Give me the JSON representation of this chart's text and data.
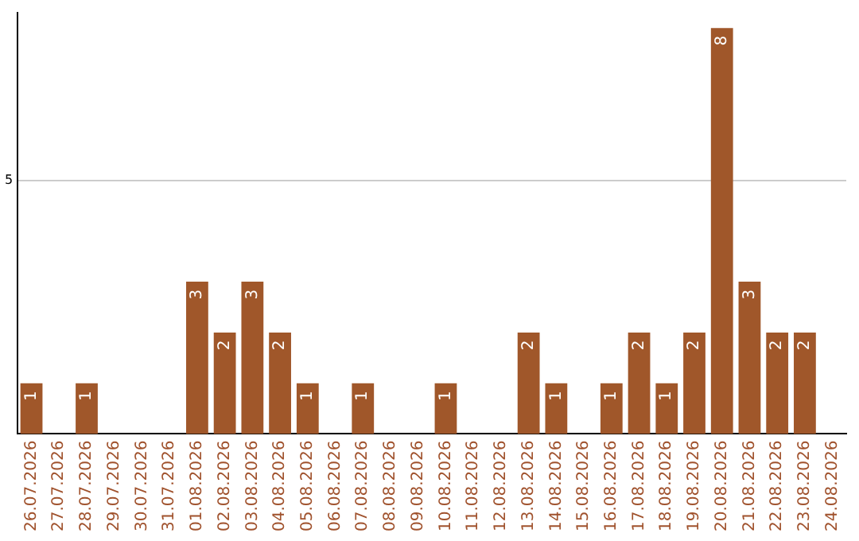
{
  "chart_data": {
    "type": "bar",
    "categories": [
      "26.07.2026",
      "27.07.2026",
      "28.07.2026",
      "29.07.2026",
      "30.07.2026",
      "31.07.2026",
      "01.08.2026",
      "02.08.2026",
      "03.08.2026",
      "04.08.2026",
      "05.08.2026",
      "06.08.2026",
      "07.08.2026",
      "08.08.2026",
      "09.08.2026",
      "10.08.2026",
      "11.08.2026",
      "12.08.2026",
      "13.08.2026",
      "14.08.2026",
      "15.08.2026",
      "16.08.2026",
      "17.08.2026",
      "18.08.2026",
      "19.08.2026",
      "20.08.2026",
      "21.08.2026",
      "22.08.2026",
      "23.08.2026",
      "24.08.2026"
    ],
    "values": [
      1,
      null,
      1,
      null,
      null,
      null,
      3,
      2,
      3,
      2,
      1,
      null,
      1,
      null,
      null,
      1,
      null,
      null,
      2,
      1,
      null,
      1,
      2,
      1,
      2,
      8,
      3,
      2,
      2,
      null
    ],
    "color": "#a0572a",
    "ylim": [
      0,
      8.3
    ],
    "yticks": [
      5
    ],
    "grid": "y",
    "data_labels": true,
    "legend": false
  }
}
